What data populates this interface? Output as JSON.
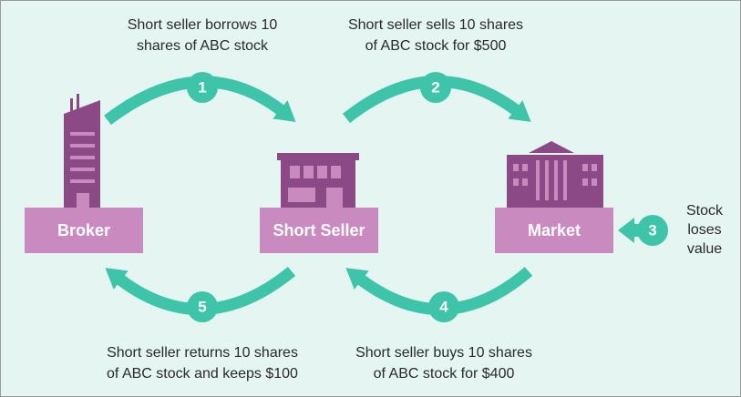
{
  "nodes": [
    {
      "label": "Broker"
    },
    {
      "label": "Short Seller"
    },
    {
      "label": "Market"
    }
  ],
  "steps": [
    {
      "number": 1,
      "text": [
        "Short seller borrows 10",
        "shares of ABC stock"
      ]
    },
    {
      "number": 2,
      "text": [
        "Short seller sells 10 shares",
        "of ABC stock for $500"
      ]
    },
    {
      "number": 3,
      "text": [
        "Stock",
        "loses",
        "value"
      ]
    },
    {
      "number": 4,
      "text": [
        "Short seller buys 10 shares",
        "of ABC stock for $400"
      ]
    },
    {
      "number": 5,
      "text": [
        "Short seller returns 10 shares",
        "of ABC stock and keeps $100"
      ]
    }
  ]
}
